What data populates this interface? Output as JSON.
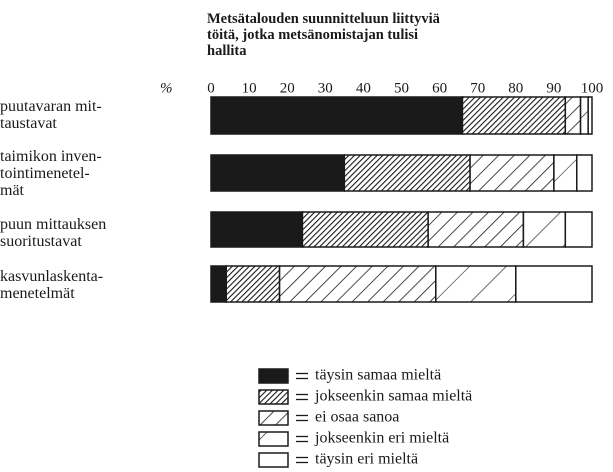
{
  "chart_data": {
    "type": "stacked_barh",
    "title": "Metsätalouden suunnitteluun liittyviä\ntöitä, jotka metsänomistajan tulisi\nhallita",
    "x_label": "%",
    "categories": [
      "puutavaran mit-\ntaustavat",
      "taimikon inven-\ntointimenetel-\nmät",
      "puun mittauksen\nsuoritustavat",
      "kasvunlaskenta-\nmenetelmät"
    ],
    "series": [
      {
        "name": "täysin samaa mieltä",
        "color": "#1a1a1a",
        "hatch": "none",
        "values": [
          66,
          35,
          24,
          4
        ]
      },
      {
        "name": "jokseenkin samaa mieltä",
        "color": "#ffffff",
        "hatch": "dense",
        "values": [
          27,
          33,
          33,
          14
        ]
      },
      {
        "name": "ei osaa sanoa",
        "color": "#ffffff",
        "hatch": "medium",
        "values": [
          4,
          22,
          25,
          41
        ]
      },
      {
        "name": "jokseenkin eri mieltä",
        "color": "#ffffff",
        "hatch": "sparse",
        "values": [
          2,
          6,
          11,
          21
        ]
      },
      {
        "name": "täysin eri mieltä",
        "color": "#ffffff",
        "hatch": "none",
        "values": [
          1,
          4,
          7,
          20
        ]
      }
    ],
    "xlim": [
      0,
      100
    ],
    "xticks": [
      0,
      10,
      20,
      30,
      40,
      50,
      60,
      70,
      80,
      90,
      100
    ]
  }
}
